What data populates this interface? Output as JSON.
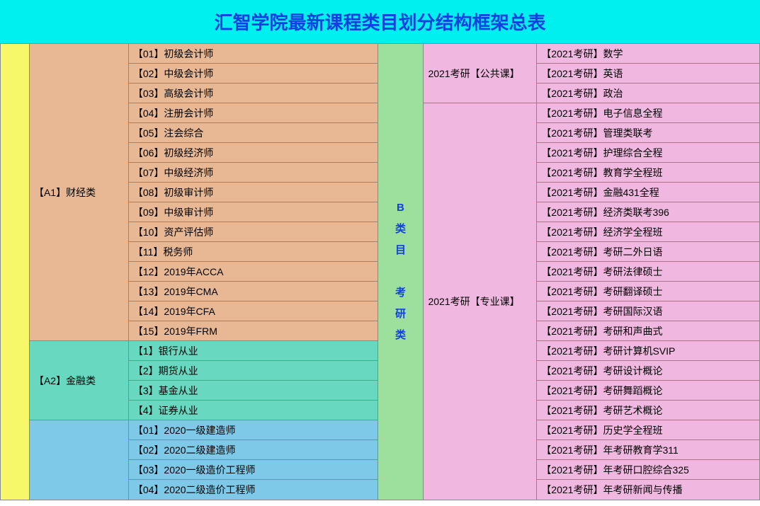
{
  "title": "汇智学院最新课程类目划分结构框架总表",
  "colors": {
    "title_bg": "#00f0f0",
    "title_fg": "#1040e0",
    "stub": "#f7f76a",
    "a1_cat": "#e8b894",
    "a1_item": "#e8b894",
    "a2_cat": "#68d8c0",
    "a2_item": "#68d8c0",
    "a3_item": "#7ec8e8",
    "b_main": "#9de09d",
    "b_main_fg": "#1040e0",
    "b_sub1": "#f0b8e0",
    "b_sub2": "#f0b8e0",
    "b_item": "#f0b8e0",
    "border": "#808080"
  },
  "b_label_lines": [
    "B",
    "类",
    "目",
    "",
    "考",
    "研",
    "类"
  ],
  "left": {
    "blocks": [
      {
        "cat": "【A1】财经类",
        "bg_key": "a1_cat",
        "item_bg_key": "a1_item",
        "items": [
          "【01】初级会计师",
          "【02】中级会计师",
          "【03】高级会计师",
          "【04】注册会计师",
          "【05】注会综合",
          "【06】初级经济师",
          "【07】中级经济师",
          "【08】初级审计师",
          "【09】中级审计师",
          "【10】资产评估师",
          "【11】税务师",
          "【12】2019年ACCA",
          "【13】2019年CMA",
          "【14】2019年CFA",
          "【15】2019年FRM"
        ]
      },
      {
        "cat": "【A2】金融类",
        "bg_key": "a2_cat",
        "item_bg_key": "a2_item",
        "items": [
          "【1】银行从业",
          "【2】期货从业",
          "【3】基金从业",
          "【4】证券从业"
        ]
      },
      {
        "cat": "",
        "bg_key": "a3_item",
        "item_bg_key": "a3_item",
        "items": [
          "【01】2020一级建造师",
          "【02】2020二级建造师",
          "【03】2020一级造价工程师",
          "【04】2020二级造价工程师"
        ]
      }
    ]
  },
  "right": {
    "sub_blocks": [
      {
        "label": "2021考研【公共课】",
        "rows": 3
      },
      {
        "label": "2021考研【专业课】",
        "rows": 20
      }
    ],
    "items": [
      "【2021考研】数学",
      "【2021考研】英语",
      "【2021考研】政治",
      "【2021考研】电子信息全程",
      "【2021考研】管理类联考",
      "【2021考研】护理综合全程",
      "【2021考研】教育学全程班",
      "【2021考研】金融431全程",
      "【2021考研】经济类联考396",
      "【2021考研】经济学全程班",
      "【2021考研】考研二外日语",
      "【2021考研】考研法律硕士",
      "【2021考研】考研翻译硕士",
      "【2021考研】考研国际汉语",
      "【2021考研】考研和声曲式",
      "【2021考研】考研计算机SVIP",
      "【2021考研】考研设计概论",
      "【2021考研】考研舞蹈概论",
      "【2021考研】考研艺术概论",
      "【2021考研】历史学全程班",
      "【2021考研】年考研教育学311",
      "【2021考研】年考研口腔综合325",
      "【2021考研】年考研新闻与传播"
    ]
  }
}
